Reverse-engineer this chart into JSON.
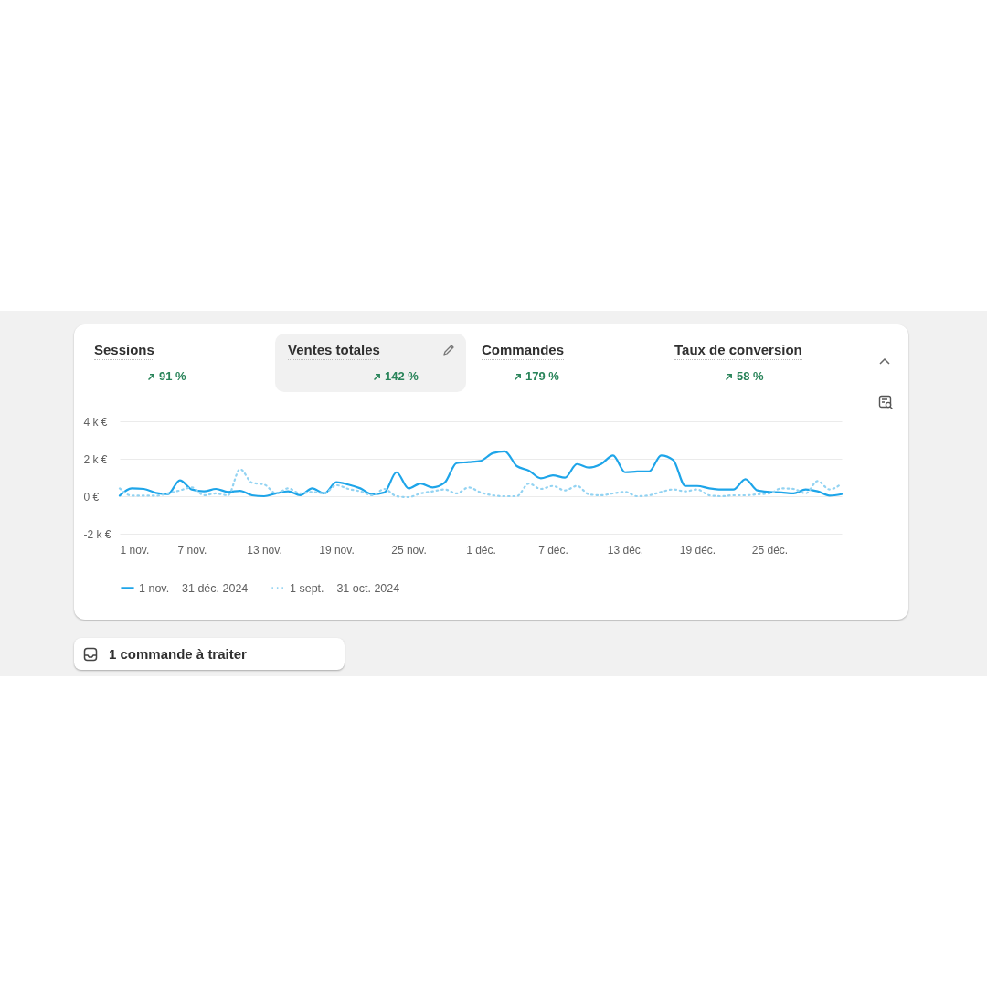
{
  "chart_data": {
    "type": "line",
    "x": [
      "2024-11-01",
      "2024-11-02",
      "2024-11-03",
      "2024-11-04",
      "2024-11-05",
      "2024-11-06",
      "2024-11-07",
      "2024-11-08",
      "2024-11-09",
      "2024-11-10",
      "2024-11-11",
      "2024-11-12",
      "2024-11-13",
      "2024-11-14",
      "2024-11-15",
      "2024-11-16",
      "2024-11-17",
      "2024-11-18",
      "2024-11-19",
      "2024-11-20",
      "2024-11-21",
      "2024-11-22",
      "2024-11-23",
      "2024-11-24",
      "2024-11-25",
      "2024-11-26",
      "2024-11-27",
      "2024-11-28",
      "2024-11-29",
      "2024-11-30",
      "2024-12-01",
      "2024-12-02",
      "2024-12-03",
      "2024-12-04",
      "2024-12-05",
      "2024-12-06",
      "2024-12-07",
      "2024-12-08",
      "2024-12-09",
      "2024-12-10",
      "2024-12-11",
      "2024-12-12",
      "2024-12-13",
      "2024-12-14",
      "2024-12-15",
      "2024-12-16",
      "2024-12-17",
      "2024-12-18",
      "2024-12-19",
      "2024-12-20",
      "2024-12-21",
      "2024-12-22",
      "2024-12-23",
      "2024-12-24",
      "2024-12-25",
      "2024-12-26",
      "2024-12-27",
      "2024-12-28",
      "2024-12-29",
      "2024-12-30",
      "2024-12-31"
    ],
    "series": [
      {
        "name": "1 nov. – 31 déc. 2024",
        "color": "#1ea5e9",
        "line_style": "solid",
        "values": [
          30,
          420,
          390,
          180,
          110,
          850,
          360,
          260,
          390,
          230,
          290,
          50,
          0,
          150,
          260,
          50,
          420,
          150,
          750,
          620,
          420,
          100,
          200,
          1280,
          420,
          680,
          470,
          720,
          1770,
          1820,
          1890,
          2300,
          2400,
          1610,
          1370,
          960,
          1120,
          990,
          1720,
          1530,
          1720,
          2180,
          1280,
          1320,
          1330,
          2180,
          1930,
          550,
          550,
          420,
          360,
          360,
          910,
          310,
          230,
          200,
          150,
          360,
          260,
          30,
          110
        ]
      },
      {
        "name": "1 sept. – 31 oct. 2024",
        "color": "#93d3f2",
        "line_style": "dotted",
        "values": [
          420,
          30,
          30,
          30,
          150,
          310,
          470,
          50,
          150,
          50,
          1450,
          720,
          630,
          150,
          420,
          150,
          230,
          150,
          590,
          390,
          260,
          50,
          390,
          0,
          -50,
          150,
          260,
          360,
          150,
          470,
          200,
          50,
          0,
          0,
          680,
          390,
          550,
          310,
          550,
          100,
          50,
          150,
          230,
          0,
          50,
          230,
          360,
          260,
          360,
          50,
          0,
          50,
          50,
          100,
          150,
          420,
          390,
          150,
          810,
          360,
          680
        ]
      }
    ],
    "xlim": [
      "2024-11-01",
      "2024-12-31"
    ],
    "xticks": [
      {
        "value": "2024-11-01",
        "label": "1 nov."
      },
      {
        "value": "2024-11-07",
        "label": "7 nov."
      },
      {
        "value": "2024-11-13",
        "label": "13 nov."
      },
      {
        "value": "2024-11-19",
        "label": "19 nov."
      },
      {
        "value": "2024-11-25",
        "label": "25 nov."
      },
      {
        "value": "2024-12-01",
        "label": "1 déc."
      },
      {
        "value": "2024-12-07",
        "label": "7 déc."
      },
      {
        "value": "2024-12-13",
        "label": "13 déc."
      },
      {
        "value": "2024-12-19",
        "label": "19 déc."
      },
      {
        "value": "2024-12-25",
        "label": "25 déc."
      }
    ],
    "ylim": [
      -2000,
      4000
    ],
    "yticks": [
      {
        "value": -2000,
        "label": "-2 k €"
      },
      {
        "value": 0,
        "label": "0 €"
      },
      {
        "value": 2000,
        "label": "2 k €"
      },
      {
        "value": 4000,
        "label": "4 k €"
      }
    ],
    "grid": "y",
    "legend": "bottom",
    "annotations": [
      "Sessions",
      "91 %",
      "Ventes totales",
      "142 %",
      "Commandes",
      "179 %",
      "Taux de conversion",
      "58 %",
      "1 commande à traiter"
    ]
  }
}
